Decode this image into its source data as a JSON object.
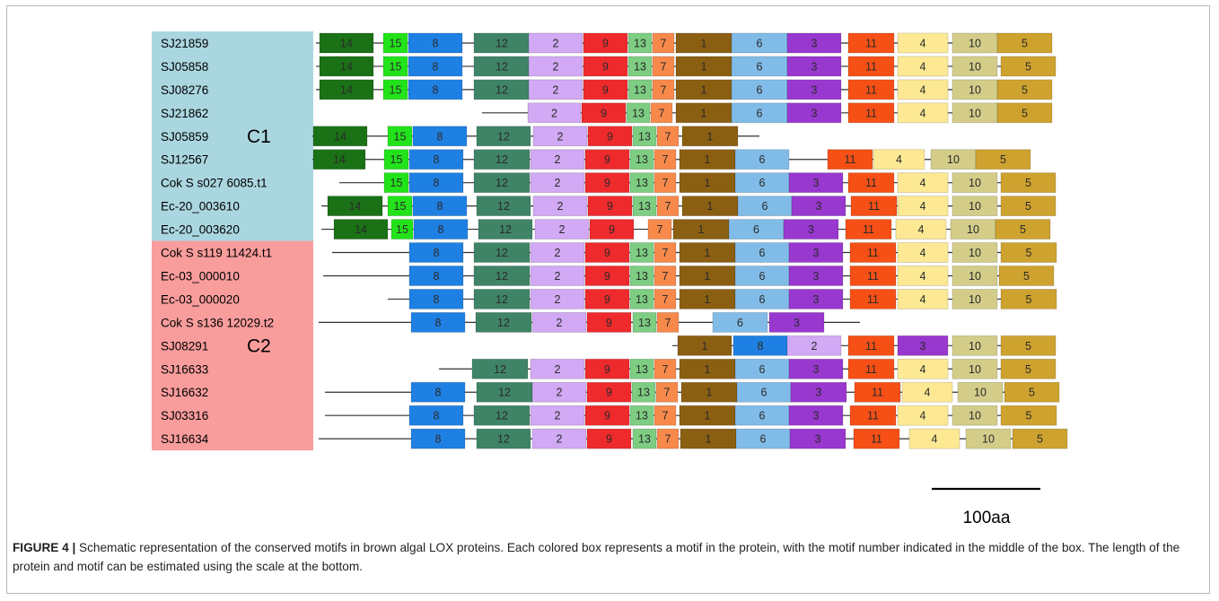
{
  "groups": [
    {
      "label": "C1",
      "color": "#aad6e0",
      "start": 0,
      "end": 8
    },
    {
      "label": "C2",
      "color": "#f99c9c",
      "start": 9,
      "end": 17
    }
  ],
  "motif_colors": {
    "1": "#8b5f12",
    "2": "#d1a9f4",
    "3": "#9838cf",
    "4": "#fde994",
    "5": "#cea22f",
    "6": "#81bce8",
    "7": "#f7894b",
    "8": "#1f80e3",
    "9": "#ee2a2c",
    "10": "#d3cd89",
    "11": "#f65016",
    "12": "#3f8467",
    "13": "#7dcd82",
    "14": "#1b7116",
    "15": "#22e31a"
  },
  "proteins": [
    {
      "name": "SJ21859",
      "line": [
        352,
        1172
      ],
      "motifs": [
        [
          14,
          356,
          416
        ],
        [
          15,
          427,
          454
        ],
        [
          8,
          455,
          515
        ],
        [
          12,
          528,
          590
        ],
        [
          2,
          589,
          649
        ],
        [
          9,
          650,
          699
        ],
        [
          13,
          700,
          726
        ],
        [
          7,
          727,
          751
        ],
        [
          1,
          753,
          815
        ],
        [
          6,
          815,
          877
        ],
        [
          3,
          877,
          937
        ],
        [
          11,
          945,
          996
        ],
        [
          4,
          1000,
          1056
        ],
        [
          10,
          1061,
          1111
        ],
        [
          5,
          1111,
          1172
        ]
      ]
    },
    {
      "name": "SJ05858",
      "line": [
        352,
        1176
      ],
      "motifs": [
        [
          14,
          356,
          416
        ],
        [
          15,
          427,
          454
        ],
        [
          8,
          455,
          515
        ],
        [
          12,
          528,
          590
        ],
        [
          2,
          589,
          649
        ],
        [
          9,
          650,
          699
        ],
        [
          13,
          700,
          726
        ],
        [
          7,
          727,
          751
        ],
        [
          1,
          753,
          815
        ],
        [
          6,
          815,
          877
        ],
        [
          3,
          877,
          937
        ],
        [
          11,
          945,
          996
        ],
        [
          4,
          1000,
          1056
        ],
        [
          10,
          1061,
          1111
        ],
        [
          5,
          1115,
          1176
        ]
      ]
    },
    {
      "name": "SJ08276",
      "line": [
        352,
        1172
      ],
      "motifs": [
        [
          14,
          356,
          416
        ],
        [
          15,
          427,
          454
        ],
        [
          8,
          455,
          515
        ],
        [
          12,
          528,
          590
        ],
        [
          2,
          589,
          649
        ],
        [
          9,
          650,
          699
        ],
        [
          13,
          700,
          726
        ],
        [
          7,
          727,
          751
        ],
        [
          1,
          753,
          815
        ],
        [
          6,
          815,
          877
        ],
        [
          3,
          877,
          937
        ],
        [
          11,
          945,
          996
        ],
        [
          4,
          1000,
          1056
        ],
        [
          10,
          1061,
          1111
        ],
        [
          5,
          1111,
          1172
        ]
      ]
    },
    {
      "name": "SJ21862",
      "line": [
        537,
        1172
      ],
      "motifs": [
        [
          2,
          588,
          647
        ],
        [
          9,
          648,
          697
        ],
        [
          13,
          698,
          724
        ],
        [
          7,
          725,
          749
        ],
        [
          1,
          753,
          815
        ],
        [
          6,
          815,
          877
        ],
        [
          3,
          877,
          937
        ],
        [
          11,
          945,
          996
        ],
        [
          4,
          1000,
          1056
        ],
        [
          10,
          1061,
          1111
        ],
        [
          5,
          1111,
          1172
        ]
      ]
    },
    {
      "name": "SJ05859",
      "line": [
        348,
        846
      ],
      "motifs": [
        [
          14,
          349,
          409
        ],
        [
          15,
          432,
          459
        ],
        [
          8,
          460,
          520
        ],
        [
          12,
          531,
          591
        ],
        [
          2,
          594,
          654
        ],
        [
          9,
          655,
          704
        ],
        [
          13,
          705,
          731
        ],
        [
          7,
          732,
          756
        ],
        [
          1,
          760,
          822
        ]
      ]
    },
    {
      "name": "SJ12567",
      "line": [
        348,
        1148
      ],
      "motifs": [
        [
          14,
          349,
          407
        ],
        [
          15,
          428,
          455
        ],
        [
          8,
          456,
          516
        ],
        [
          12,
          528,
          590
        ],
        [
          2,
          591,
          651
        ],
        [
          9,
          652,
          701
        ],
        [
          13,
          702,
          728
        ],
        [
          7,
          729,
          753
        ],
        [
          1,
          757,
          819
        ],
        [
          6,
          819,
          879
        ],
        [
          11,
          922,
          972
        ],
        [
          4,
          973,
          1030
        ],
        [
          10,
          1037,
          1087
        ],
        [
          5,
          1087,
          1148
        ]
      ]
    },
    {
      "name": "Cok S s027 6085.t1",
      "line": [
        378,
        1176
      ],
      "motifs": [
        [
          15,
          428,
          455
        ],
        [
          8,
          456,
          516
        ],
        [
          12,
          528,
          590
        ],
        [
          2,
          591,
          651
        ],
        [
          9,
          652,
          701
        ],
        [
          13,
          702,
          728
        ],
        [
          7,
          729,
          753
        ],
        [
          1,
          757,
          819
        ],
        [
          6,
          819,
          879
        ],
        [
          3,
          879,
          939
        ],
        [
          11,
          945,
          996
        ],
        [
          4,
          1000,
          1056
        ],
        [
          10,
          1061,
          1111
        ],
        [
          5,
          1115,
          1176
        ]
      ]
    },
    {
      "name": "Ec-20_003610",
      "line": [
        358,
        1176
      ],
      "motifs": [
        [
          14,
          365,
          426
        ],
        [
          15,
          432,
          459
        ],
        [
          8,
          460,
          520
        ],
        [
          12,
          531,
          591
        ],
        [
          2,
          594,
          654
        ],
        [
          9,
          655,
          704
        ],
        [
          13,
          705,
          731
        ],
        [
          7,
          732,
          756
        ],
        [
          1,
          760,
          822
        ],
        [
          6,
          822,
          882
        ],
        [
          3,
          882,
          942
        ],
        [
          11,
          948,
          999
        ],
        [
          4,
          1000,
          1056
        ],
        [
          10,
          1061,
          1111
        ],
        [
          5,
          1115,
          1176
        ]
      ]
    },
    {
      "name": "Ec-20_003620",
      "line": [
        358,
        1170
      ],
      "motifs": [
        [
          14,
          372,
          432
        ],
        [
          15,
          436,
          460
        ],
        [
          8,
          461,
          521
        ],
        [
          12,
          533,
          593
        ],
        [
          2,
          596,
          656
        ],
        [
          9,
          657,
          706
        ],
        [
          7,
          722,
          748
        ],
        [
          1,
          750,
          812
        ],
        [
          6,
          812,
          873
        ],
        [
          3,
          873,
          934
        ],
        [
          11,
          942,
          993
        ],
        [
          4,
          998,
          1054
        ],
        [
          10,
          1059,
          1109
        ],
        [
          5,
          1109,
          1170
        ]
      ]
    },
    {
      "name": "Cok S s119 11424.t1",
      "line": [
        370,
        1177
      ],
      "motifs": [
        [
          8,
          456,
          516
        ],
        [
          12,
          528,
          590
        ],
        [
          2,
          591,
          651
        ],
        [
          9,
          652,
          701
        ],
        [
          13,
          702,
          728
        ],
        [
          7,
          729,
          753
        ],
        [
          1,
          757,
          819
        ],
        [
          6,
          819,
          879
        ],
        [
          3,
          879,
          939
        ],
        [
          11,
          947,
          998
        ],
        [
          4,
          1000,
          1056
        ],
        [
          10,
          1061,
          1111
        ],
        [
          5,
          1115,
          1177
        ]
      ]
    },
    {
      "name": "Ec-03_000010",
      "line": [
        360,
        1174
      ],
      "motifs": [
        [
          8,
          456,
          516
        ],
        [
          12,
          528,
          590
        ],
        [
          2,
          591,
          651
        ],
        [
          9,
          652,
          701
        ],
        [
          13,
          702,
          728
        ],
        [
          7,
          729,
          753
        ],
        [
          1,
          757,
          819
        ],
        [
          6,
          819,
          879
        ],
        [
          3,
          879,
          939
        ],
        [
          11,
          947,
          998
        ],
        [
          4,
          1000,
          1056
        ],
        [
          10,
          1061,
          1111
        ],
        [
          5,
          1113,
          1174
        ]
      ]
    },
    {
      "name": "Ec-03_000020",
      "line": [
        432,
        1177
      ],
      "motifs": [
        [
          8,
          456,
          516
        ],
        [
          12,
          528,
          590
        ],
        [
          2,
          591,
          651
        ],
        [
          9,
          652,
          701
        ],
        [
          13,
          702,
          728
        ],
        [
          7,
          729,
          753
        ],
        [
          1,
          757,
          819
        ],
        [
          6,
          819,
          879
        ],
        [
          3,
          879,
          939
        ],
        [
          11,
          947,
          998
        ],
        [
          4,
          1000,
          1056
        ],
        [
          10,
          1061,
          1111
        ],
        [
          5,
          1115,
          1177
        ]
      ]
    },
    {
      "name": "Cok S s136 12029.t2",
      "line": [
        355,
        958
      ],
      "motifs": [
        [
          8,
          458,
          518
        ],
        [
          12,
          530,
          592
        ],
        [
          2,
          593,
          653
        ],
        [
          9,
          654,
          703
        ],
        [
          13,
          705,
          731
        ],
        [
          7,
          732,
          756
        ],
        [
          6,
          794,
          855
        ],
        [
          3,
          857,
          918
        ]
      ]
    },
    {
      "name": "SJ08291",
      "line": [
        749,
        1176
      ],
      "motifs": [
        [
          1,
          755,
          815
        ],
        [
          8,
          817,
          877
        ],
        [
          2,
          877,
          937
        ],
        [
          11,
          945,
          996
        ],
        [
          3,
          1000,
          1056
        ],
        [
          10,
          1061,
          1111
        ],
        [
          5,
          1115,
          1176
        ]
      ]
    },
    {
      "name": "SJ16633",
      "line": [
        489,
        1176
      ],
      "motifs": [
        [
          12,
          526,
          588
        ],
        [
          2,
          591,
          651
        ],
        [
          9,
          652,
          701
        ],
        [
          13,
          702,
          728
        ],
        [
          7,
          729,
          753
        ],
        [
          1,
          757,
          819
        ],
        [
          6,
          819,
          879
        ],
        [
          3,
          879,
          939
        ],
        [
          11,
          945,
          996
        ],
        [
          4,
          1000,
          1056
        ],
        [
          10,
          1061,
          1111
        ],
        [
          5,
          1115,
          1176
        ]
      ]
    },
    {
      "name": "SJ16632",
      "line": [
        362,
        1180
      ],
      "motifs": [
        [
          8,
          458,
          518
        ],
        [
          12,
          531,
          593
        ],
        [
          2,
          593,
          653
        ],
        [
          9,
          654,
          703
        ],
        [
          13,
          704,
          730
        ],
        [
          7,
          731,
          755
        ],
        [
          1,
          759,
          821
        ],
        [
          6,
          821,
          881
        ],
        [
          3,
          881,
          943
        ],
        [
          11,
          952,
          1003
        ],
        [
          4,
          1005,
          1061
        ],
        [
          10,
          1067,
          1117
        ],
        [
          5,
          1119,
          1180
        ]
      ]
    },
    {
      "name": "SJ03316",
      "line": [
        362,
        1177
      ],
      "motifs": [
        [
          8,
          456,
          516
        ],
        [
          12,
          528,
          590
        ],
        [
          2,
          591,
          651
        ],
        [
          9,
          652,
          701
        ],
        [
          13,
          702,
          728
        ],
        [
          7,
          729,
          753
        ],
        [
          1,
          757,
          819
        ],
        [
          6,
          819,
          879
        ],
        [
          3,
          879,
          939
        ],
        [
          11,
          947,
          998
        ],
        [
          4,
          1000,
          1056
        ],
        [
          10,
          1061,
          1111
        ],
        [
          5,
          1115,
          1177
        ]
      ]
    },
    {
      "name": "SJ16634",
      "line": [
        355,
        1189
      ],
      "motifs": [
        [
          8,
          458,
          518
        ],
        [
          12,
          531,
          591
        ],
        [
          2,
          593,
          653
        ],
        [
          9,
          654,
          703
        ],
        [
          13,
          705,
          731
        ],
        [
          7,
          732,
          756
        ],
        [
          1,
          758,
          820
        ],
        [
          6,
          820,
          880
        ],
        [
          3,
          880,
          942
        ],
        [
          11,
          951,
          1002
        ],
        [
          4,
          1013,
          1069
        ],
        [
          10,
          1076,
          1126
        ],
        [
          5,
          1128,
          1189
        ]
      ]
    }
  ],
  "scale_label": "100aa",
  "caption": {
    "label": "FIGURE 4 |",
    "text": " Schematic representation of the conserved motifs in brown algal LOX proteins. Each colored box represents a motif in the protein, with the motif number indicated in the middle of the box. The length of the protein and motif can be estimated using the scale at the bottom."
  }
}
